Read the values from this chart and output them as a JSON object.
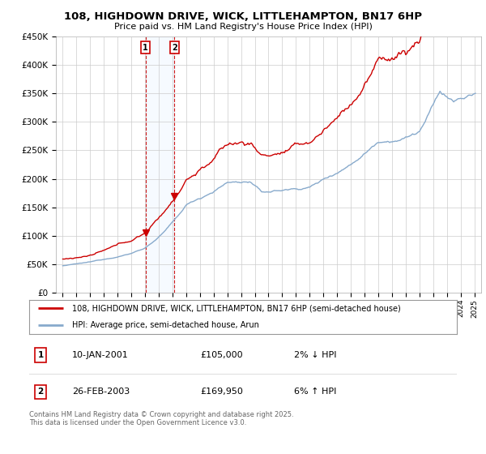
{
  "title": "108, HIGHDOWN DRIVE, WICK, LITTLEHAMPTON, BN17 6HP",
  "subtitle": "Price paid vs. HM Land Registry's House Price Index (HPI)",
  "background_color": "#ffffff",
  "grid_color": "#cccccc",
  "red_line_color": "#cc0000",
  "blue_line_color": "#88aacc",
  "shade_color": "#ddeeff",
  "dashed_line_color": "#cc0000",
  "t1_year": 2001.03,
  "t1_price": 105000,
  "t2_year": 2003.15,
  "t2_price": 169950,
  "legend_line1": "108, HIGHDOWN DRIVE, WICK, LITTLEHAMPTON, BN17 6HP (semi-detached house)",
  "legend_line2": "HPI: Average price, semi-detached house, Arun",
  "footer": "Contains HM Land Registry data © Crown copyright and database right 2025.\nThis data is licensed under the Open Government Licence v3.0.",
  "ylim": [
    0,
    450000
  ],
  "yticks": [
    0,
    50000,
    100000,
    150000,
    200000,
    250000,
    300000,
    350000,
    400000,
    450000
  ],
  "xlim": [
    1994.5,
    2025.5
  ],
  "xtick_years": [
    1995,
    1996,
    1997,
    1998,
    1999,
    2000,
    2001,
    2002,
    2003,
    2004,
    2005,
    2006,
    2007,
    2008,
    2009,
    2010,
    2011,
    2012,
    2013,
    2014,
    2015,
    2016,
    2017,
    2018,
    2019,
    2020,
    2021,
    2022,
    2023,
    2024,
    2025
  ],
  "t1_date_str": "10-JAN-2001",
  "t2_date_str": "26-FEB-2003",
  "t1_pct": "2% ↓ HPI",
  "t2_pct": "6% ↑ HPI",
  "t1_price_str": "£105,000",
  "t2_price_str": "£169,950"
}
